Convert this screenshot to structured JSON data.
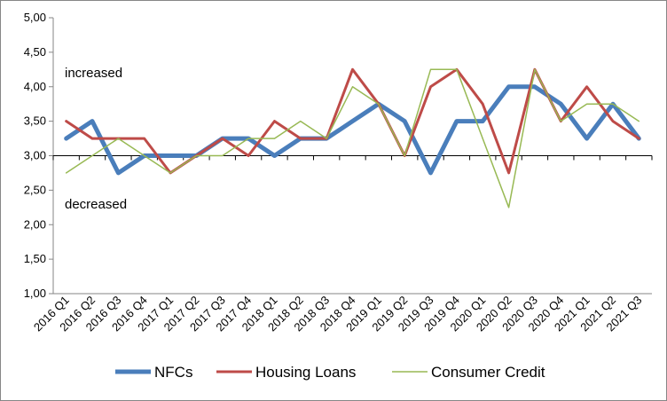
{
  "chart_data": {
    "type": "line",
    "title": "",
    "xlabel": "",
    "ylabel": "",
    "ylim": [
      1.0,
      5.0
    ],
    "ytick_step": 0.5,
    "ytick_labels": [
      "1,00",
      "1,50",
      "2,00",
      "2,50",
      "3,00",
      "3,50",
      "4,00",
      "4,50",
      "5,00"
    ],
    "grid": false,
    "legend_position": "bottom",
    "categories": [
      "2016 Q1",
      "2016 Q2",
      "2016 Q3",
      "2016 Q4",
      "2017 Q1",
      "2017 Q2",
      "2017 Q3",
      "2017 Q4",
      "2018 Q1",
      "2018 Q2",
      "2018 Q3",
      "2018 Q4",
      "2019 Q1",
      "2019 Q2",
      "2019 Q3",
      "2019 Q4",
      "2020 Q1",
      "2020 Q2",
      "2020 Q3",
      "2020 Q4",
      "2021 Q1",
      "2021 Q2",
      "2021 Q3"
    ],
    "series": [
      {
        "name": "NFCs",
        "color": "#4a7ebb",
        "values": [
          3.25,
          3.5,
          2.75,
          3.0,
          3.0,
          3.0,
          3.25,
          3.25,
          3.0,
          3.25,
          3.25,
          3.5,
          3.75,
          3.5,
          2.75,
          3.5,
          3.5,
          4.0,
          4.0,
          3.75,
          3.25,
          3.75,
          3.25
        ]
      },
      {
        "name": "Housing Loans",
        "color": "#be4b48",
        "values": [
          3.5,
          3.25,
          3.25,
          3.25,
          2.75,
          3.0,
          3.25,
          3.0,
          3.5,
          3.25,
          3.25,
          4.25,
          3.75,
          3.0,
          4.0,
          4.25,
          3.75,
          2.75,
          4.25,
          3.5,
          4.0,
          3.5,
          3.25
        ]
      },
      {
        "name": "Consumer Credit",
        "color": "#98b954",
        "values": [
          2.75,
          3.0,
          3.25,
          3.0,
          2.75,
          3.0,
          3.0,
          3.25,
          3.25,
          3.5,
          3.25,
          4.0,
          3.75,
          3.0,
          4.25,
          4.25,
          3.25,
          2.25,
          4.25,
          3.5,
          3.75,
          3.75,
          3.5
        ]
      }
    ],
    "annotations": [
      {
        "text": "increased",
        "value": 4.2
      },
      {
        "text": "decreased",
        "value": 2.3
      }
    ],
    "reference_line": 3.0
  }
}
